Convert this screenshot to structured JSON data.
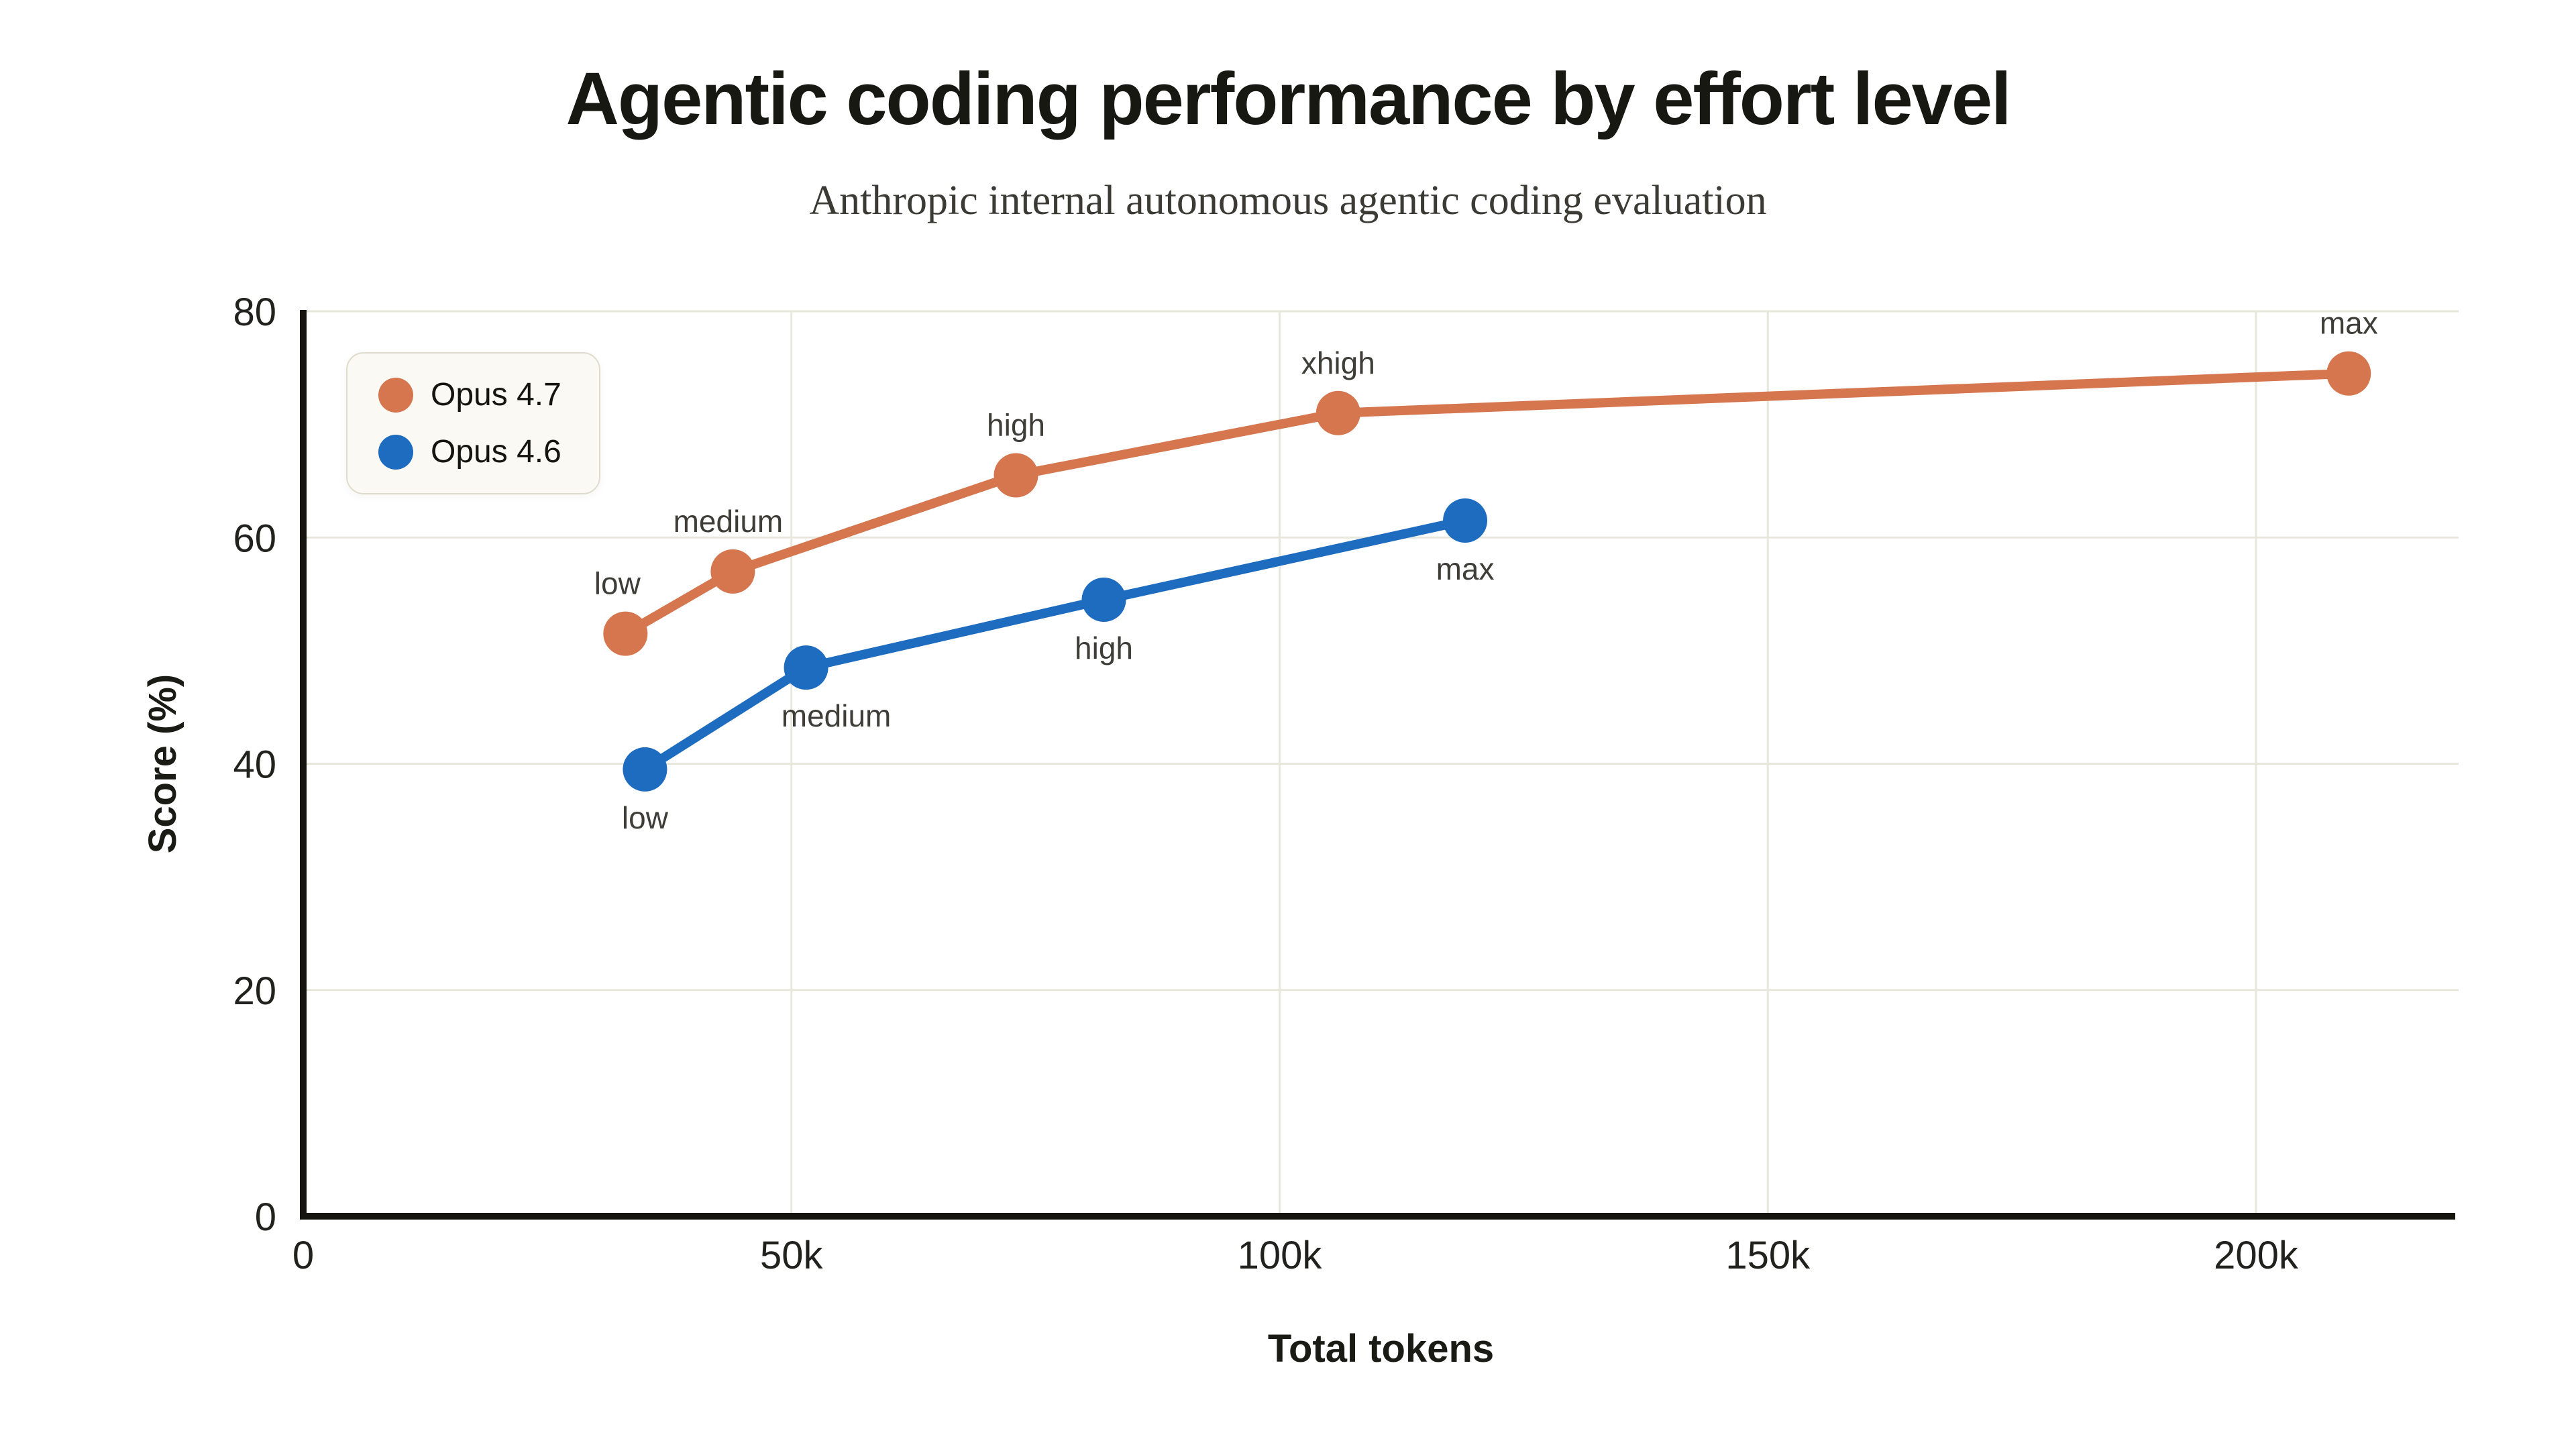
{
  "chart_data": {
    "type": "line",
    "title": "Agentic coding performance by effort level",
    "subtitle": "Anthropic internal autonomous agentic coding evaluation",
    "xlabel": "Total tokens",
    "ylabel": "Score (%)",
    "xlim": [
      0,
      221000
    ],
    "ylim": [
      0,
      80
    ],
    "grid": true,
    "legend_position": "top-left",
    "x_ticks": [
      {
        "v": 0,
        "label": "0"
      },
      {
        "v": 50000,
        "label": "50k"
      },
      {
        "v": 100000,
        "label": "100k"
      },
      {
        "v": 150000,
        "label": "150k"
      },
      {
        "v": 200000,
        "label": "200k"
      }
    ],
    "y_ticks": [
      {
        "v": 0,
        "label": "0"
      },
      {
        "v": 20,
        "label": "20"
      },
      {
        "v": 40,
        "label": "40"
      },
      {
        "v": 60,
        "label": "60"
      },
      {
        "v": 80,
        "label": "80"
      }
    ],
    "colors": {
      "background": "#FFFFFF",
      "grid": "#E8E7DC",
      "axis": "#15140F",
      "tick_label": "#21211D",
      "point_label": "#3E3D38",
      "axis_title": "#1B1B16",
      "title": "#181813",
      "subtitle": "#3B3A34",
      "legend_bg": "#FAF9F3",
      "legend_border": "#DFDCCE",
      "legend_text": "#15150F"
    },
    "series": [
      {
        "name": "Opus 4.7",
        "color": "#D5764F",
        "points": [
          {
            "x": 33000,
            "y": 51.5,
            "label": "low",
            "label_side": "above",
            "label_dx": -12
          },
          {
            "x": 44000,
            "y": 57,
            "label": "medium",
            "label_side": "above",
            "label_dx": -7
          },
          {
            "x": 73000,
            "y": 65.5,
            "label": "high",
            "label_side": "above",
            "label_dx": 0
          },
          {
            "x": 106000,
            "y": 71,
            "label": "xhigh",
            "label_side": "above",
            "label_dx": 0
          },
          {
            "x": 209500,
            "y": 74.5,
            "label": "max",
            "label_side": "above",
            "label_dx": 0
          }
        ]
      },
      {
        "name": "Opus 4.6",
        "color": "#1E6CC0",
        "points": [
          {
            "x": 35000,
            "y": 39.5,
            "label": "low",
            "label_side": "below",
            "label_dx": 0
          },
          {
            "x": 51500,
            "y": 48.5,
            "label": "medium",
            "label_side": "below",
            "label_dx": 45
          },
          {
            "x": 82000,
            "y": 54.5,
            "label": "high",
            "label_side": "below",
            "label_dx": 0
          },
          {
            "x": 119000,
            "y": 61.5,
            "label": "max",
            "label_side": "below",
            "label_dx": 0
          }
        ]
      }
    ]
  }
}
